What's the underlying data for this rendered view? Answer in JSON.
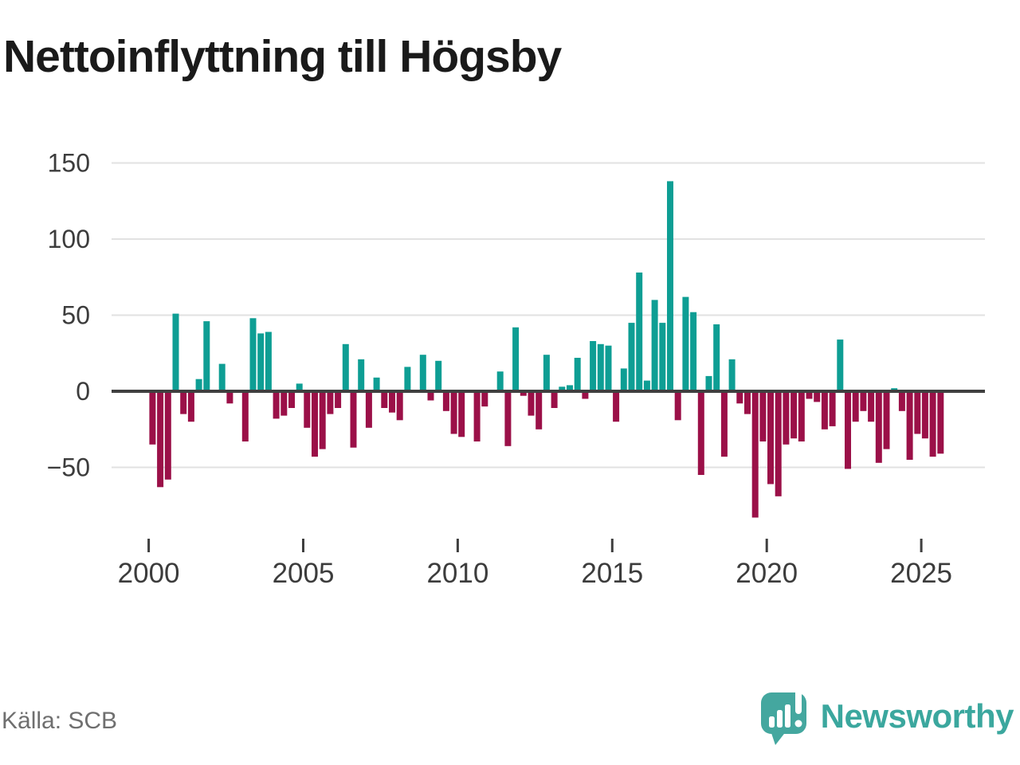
{
  "title": "Nettoinflyttning till Högsby",
  "source_label": "Källa: SCB",
  "brand_name": "Newsworthy",
  "chart_data": {
    "type": "bar",
    "title": "Nettoinflyttning till Högsby",
    "x_unit": "quarter",
    "start_year": 2000,
    "start_quarter": 1,
    "end_label": "2025 Q3",
    "grid": true,
    "ylim": [
      -95,
      155
    ],
    "y_ticks": [
      {
        "value": 150,
        "label": "150"
      },
      {
        "value": 100,
        "label": "100"
      },
      {
        "value": 50,
        "label": "50"
      },
      {
        "value": 0,
        "label": "0"
      },
      {
        "value": -50,
        "label": "−50"
      }
    ],
    "x_tick_years": [
      2000,
      2005,
      2010,
      2015,
      2020,
      2025
    ],
    "colors": {
      "positive": "#0e9e94",
      "negative": "#9b1048",
      "grid": "#e2e2e2",
      "zero_line": "#3f3f3f",
      "tick_text": "#3c3c3c"
    },
    "values": [
      -35,
      -63,
      -58,
      51,
      -15,
      -20,
      8,
      46,
      1,
      18,
      -8,
      1,
      -33,
      48,
      38,
      39,
      -18,
      -16,
      -11,
      5,
      -24,
      -43,
      -38,
      -15,
      -11,
      31,
      -37,
      21,
      -24,
      9,
      -11,
      -14,
      -19,
      16,
      1,
      24,
      -6,
      20,
      -13,
      -28,
      -30,
      0,
      -33,
      -10,
      0,
      13,
      -36,
      42,
      -3,
      -16,
      -25,
      24,
      -11,
      3,
      4,
      22,
      -5,
      33,
      31,
      30,
      -20,
      15,
      45,
      78,
      7,
      60,
      45,
      138,
      -19,
      62,
      52,
      -55,
      10,
      44,
      -43,
      21,
      -8,
      -15,
      -83,
      -33,
      -61,
      -69,
      -35,
      -31,
      -33,
      -5,
      -7,
      -25,
      -23,
      34,
      -51,
      -20,
      -13,
      -20,
      -47,
      -38,
      2,
      -13,
      -45,
      -28,
      -31,
      -43,
      -41
    ]
  }
}
